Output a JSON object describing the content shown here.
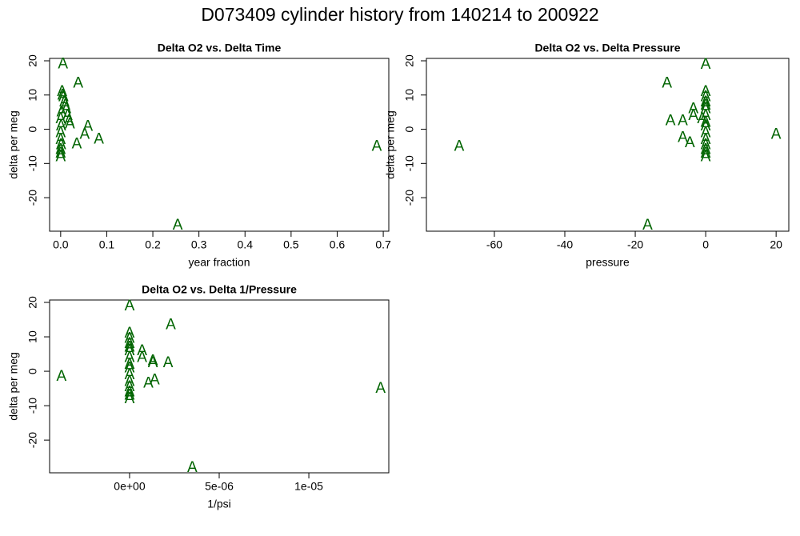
{
  "title": "D073409   cylinder history from  140214  to  200922",
  "chart_data": [
    {
      "type": "scatter",
      "title": "Delta O2 vs. Delta Time",
      "x_label": "year fraction",
      "y_label": "delta per meg",
      "marker": "A",
      "color": "#006400",
      "xlim": [
        -0.024,
        0.712
      ],
      "ylim": [
        -29.8,
        20.7
      ],
      "xticks": [
        {
          "value": 0,
          "label": "0.0"
        },
        0.1,
        0.2,
        0.3,
        0.4,
        0.5,
        0.6,
        0.7
      ],
      "yticks": [
        -20,
        -10,
        0,
        10,
        20
      ],
      "series": [
        {
          "x": [
            0.005,
            0.038,
            0.083,
            0.059,
            0.052,
            0.035,
            0.686,
            0.254,
            0.003,
            0.006,
            0.008,
            0.004,
            0.01,
            0.012,
            0.015,
            0.018,
            0.02,
            0.002,
            0.0,
            0.001,
            0.0,
            0.0,
            0.001,
            0.0,
            0.0,
            0.0
          ],
          "values": [
            19.1,
            13.4,
            -2.9,
            0.8,
            -1.5,
            -4.3,
            -5.0,
            -28.0,
            11,
            9.5,
            8,
            10,
            7,
            6,
            4,
            2.5,
            1.5,
            5,
            3,
            1,
            -1,
            -3,
            -4.5,
            -6,
            -7,
            -8
          ]
        }
      ]
    },
    {
      "type": "scatter",
      "title": "Delta O2 vs. Delta Pressure",
      "x_label": "pressure",
      "y_label": "delta per meg",
      "marker": "A",
      "color": "#006400",
      "xlim": [
        -79.3,
        23.6
      ],
      "ylim": [
        -29.8,
        20.7
      ],
      "xticks": [
        -60,
        -40,
        -20,
        0,
        20
      ],
      "yticks": [
        -20,
        -10,
        0,
        10,
        20
      ],
      "series": [
        {
          "x": [
            0,
            -11,
            20,
            -70,
            -16.5,
            -10,
            -6.5,
            -6.5,
            -4.5,
            -3.5,
            -3.5,
            -1,
            0,
            0,
            0,
            0,
            0,
            0,
            0,
            0,
            0,
            0,
            0,
            0,
            0,
            0
          ],
          "values": [
            19,
            13.5,
            -1.5,
            -5,
            -28,
            2.5,
            2.5,
            -2.5,
            -4,
            6,
            4,
            3,
            11,
            9.5,
            8,
            7,
            6,
            4,
            2,
            1,
            -1,
            -3,
            -4.5,
            -6,
            -7,
            -8
          ]
        }
      ]
    },
    {
      "type": "scatter",
      "title": "Delta O2 vs. Delta 1/Pressure",
      "x_label": "1/psi",
      "y_label": "delta per meg",
      "marker": "A",
      "color": "#006400",
      "xlim": [
        -4.46e-06,
        1.446e-05
      ],
      "ylim": [
        -29.5,
        20.7
      ],
      "xticks": [
        {
          "value": 0,
          "label": "0e+00"
        },
        {
          "value": 5e-06,
          "label": "5e-06"
        },
        {
          "value": 1e-05,
          "label": "1e-05"
        }
      ],
      "yticks": [
        -20,
        -10,
        0,
        10,
        20
      ],
      "series": [
        {
          "x": [
            -3.8e-06,
            0,
            2.3e-06,
            1.4e-05,
            3.5e-06,
            7e-07,
            7e-07,
            1.3e-06,
            1.3e-06,
            2.15e-06,
            1.4e-06,
            1.05e-06,
            0,
            0,
            0,
            0,
            0,
            0,
            0,
            0,
            0,
            0,
            0,
            0,
            0,
            0
          ],
          "values": [
            -1.5,
            19,
            13.5,
            -5,
            -28,
            6,
            4,
            3,
            2.5,
            2.5,
            -2.5,
            -3.5,
            11,
            9.5,
            8,
            7,
            6,
            4,
            2,
            1,
            -1,
            -3,
            -4.5,
            -6,
            -7,
            -8
          ]
        }
      ]
    }
  ]
}
